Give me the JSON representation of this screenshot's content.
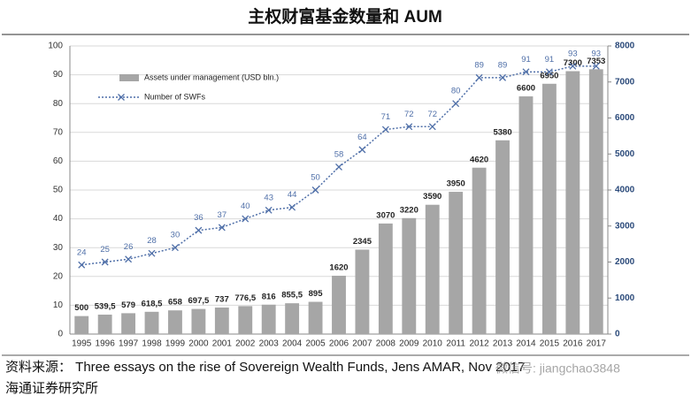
{
  "chart_data": {
    "type": "combo",
    "title": "主权财富基金数量和 AUM",
    "categories": [
      "1995",
      "1996",
      "1997",
      "1998",
      "1999",
      "2000",
      "2001",
      "2002",
      "2003",
      "2004",
      "2005",
      "2006",
      "2007",
      "2008",
      "2009",
      "2010",
      "2011",
      "2012",
      "2013",
      "2014",
      "2015",
      "2016",
      "2017"
    ],
    "series": [
      {
        "name": "Assets under management (USD bln.)",
        "type": "bar",
        "axis": "y2",
        "color": "#a6a6a6",
        "values": [
          500,
          539.5,
          579,
          618.5,
          658,
          697.5,
          737,
          776.5,
          816,
          855.5,
          895,
          1620,
          2345,
          3070,
          3220,
          3590,
          3950,
          4620,
          5380,
          6600,
          6950,
          7300,
          7353
        ],
        "value_labels": [
          "500",
          "539,5",
          "579",
          "618,5",
          "658",
          "697,5",
          "737",
          "776,5",
          "816",
          "855,5",
          "895",
          "1620",
          "2345",
          "3070",
          "3220",
          "3590",
          "3950",
          "4620",
          "5380",
          "6600",
          "6950",
          "7300",
          "7353"
        ]
      },
      {
        "name": "Number of SWFs",
        "type": "line",
        "axis": "y",
        "color": "#4f6fa8",
        "values": [
          24,
          25,
          26,
          28,
          30,
          36,
          37,
          40,
          43,
          44,
          50,
          58,
          64,
          71,
          72,
          72,
          80,
          89,
          89,
          91,
          91,
          93,
          93
        ]
      }
    ],
    "ylim": [
      0,
      100
    ],
    "yticks": [
      0,
      10,
      20,
      30,
      40,
      50,
      60,
      70,
      80,
      90,
      100
    ],
    "y2lim": [
      0,
      8000
    ],
    "y2ticks": [
      0,
      1000,
      2000,
      3000,
      4000,
      5000,
      6000,
      7000,
      8000
    ],
    "grid": true,
    "legend": "top-left",
    "source": "资料来源： Three essays on the rise of Sovereign Wealth Funds, Jens AMAR, Nov 2017",
    "watermark": "微信号: jiangchao3848",
    "publisher": "海通证券研究所"
  }
}
